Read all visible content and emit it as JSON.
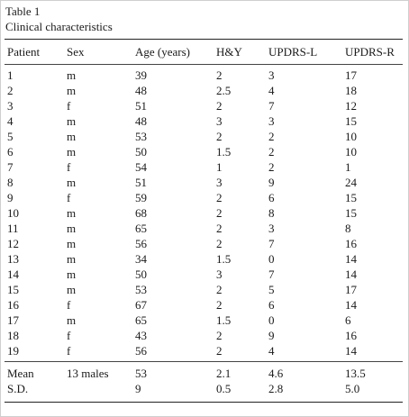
{
  "table": {
    "label": "Table 1",
    "title": "Clinical characteristics",
    "headers": [
      "Patient",
      "Sex",
      "Age (years)",
      "H&Y",
      "UPDRS-L",
      "UPDRS-R"
    ],
    "rows": [
      [
        "1",
        "m",
        "39",
        "2",
        "3",
        "17"
      ],
      [
        "2",
        "m",
        "48",
        "2.5",
        "4",
        "18"
      ],
      [
        "3",
        "f",
        "51",
        "2",
        "7",
        "12"
      ],
      [
        "4",
        "m",
        "48",
        "3",
        "3",
        "15"
      ],
      [
        "5",
        "m",
        "53",
        "2",
        "2",
        "10"
      ],
      [
        "6",
        "m",
        "50",
        "1.5",
        "2",
        "10"
      ],
      [
        "7",
        "f",
        "54",
        "1",
        "2",
        "1"
      ],
      [
        "8",
        "m",
        "51",
        "3",
        "9",
        "24"
      ],
      [
        "9",
        "f",
        "59",
        "2",
        "6",
        "15"
      ],
      [
        "10",
        "m",
        "68",
        "2",
        "8",
        "15"
      ],
      [
        "11",
        "m",
        "65",
        "2",
        "3",
        "8"
      ],
      [
        "12",
        "m",
        "56",
        "2",
        "7",
        "16"
      ],
      [
        "13",
        "m",
        "34",
        "1.5",
        "0",
        "14"
      ],
      [
        "14",
        "m",
        "50",
        "3",
        "7",
        "14"
      ],
      [
        "15",
        "m",
        "53",
        "2",
        "5",
        "17"
      ],
      [
        "16",
        "f",
        "67",
        "2",
        "6",
        "14"
      ],
      [
        "17",
        "m",
        "65",
        "1.5",
        "0",
        "6"
      ],
      [
        "18",
        "f",
        "43",
        "2",
        "9",
        "16"
      ],
      [
        "19",
        "f",
        "56",
        "2",
        "4",
        "14"
      ]
    ],
    "summary": [
      [
        "Mean",
        "13 males",
        "53",
        "2.1",
        "4.6",
        "13.5"
      ],
      [
        "S.D.",
        "",
        "9",
        "0.5",
        "2.8",
        "5.0"
      ]
    ]
  }
}
